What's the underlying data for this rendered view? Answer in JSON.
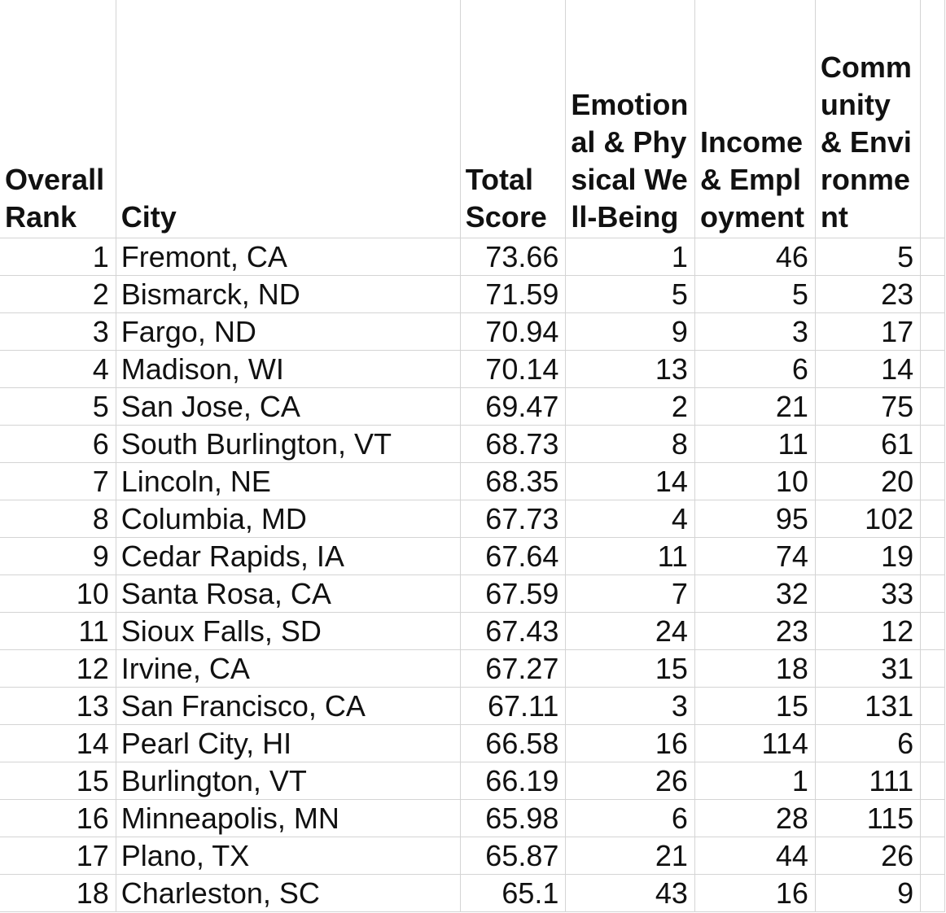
{
  "table": {
    "headers": {
      "rank": "Overall Rank",
      "city": "City",
      "total": "Total Score",
      "wellbeing": "Emotional & Physical Well-Being",
      "income": "Income & Employment",
      "community": "Community & Environment"
    },
    "rows": [
      {
        "rank": "1",
        "city": "Fremont, CA",
        "total": "73.66",
        "wellbeing": "1",
        "income": "46",
        "community": "5"
      },
      {
        "rank": "2",
        "city": "Bismarck, ND",
        "total": "71.59",
        "wellbeing": "5",
        "income": "5",
        "community": "23"
      },
      {
        "rank": "3",
        "city": "Fargo, ND",
        "total": "70.94",
        "wellbeing": "9",
        "income": "3",
        "community": "17"
      },
      {
        "rank": "4",
        "city": "Madison, WI",
        "total": "70.14",
        "wellbeing": "13",
        "income": "6",
        "community": "14"
      },
      {
        "rank": "5",
        "city": "San Jose, CA",
        "total": "69.47",
        "wellbeing": "2",
        "income": "21",
        "community": "75"
      },
      {
        "rank": "6",
        "city": "South Burlington, VT",
        "total": "68.73",
        "wellbeing": "8",
        "income": "11",
        "community": "61"
      },
      {
        "rank": "7",
        "city": "Lincoln, NE",
        "total": "68.35",
        "wellbeing": "14",
        "income": "10",
        "community": "20"
      },
      {
        "rank": "8",
        "city": "Columbia, MD",
        "total": "67.73",
        "wellbeing": "4",
        "income": "95",
        "community": "102"
      },
      {
        "rank": "9",
        "city": "Cedar Rapids, IA",
        "total": "67.64",
        "wellbeing": "11",
        "income": "74",
        "community": "19"
      },
      {
        "rank": "10",
        "city": "Santa Rosa, CA",
        "total": "67.59",
        "wellbeing": "7",
        "income": "32",
        "community": "33"
      },
      {
        "rank": "11",
        "city": "Sioux Falls, SD",
        "total": "67.43",
        "wellbeing": "24",
        "income": "23",
        "community": "12"
      },
      {
        "rank": "12",
        "city": "Irvine, CA",
        "total": "67.27",
        "wellbeing": "15",
        "income": "18",
        "community": "31"
      },
      {
        "rank": "13",
        "city": "San Francisco, CA",
        "total": "67.11",
        "wellbeing": "3",
        "income": "15",
        "community": "131"
      },
      {
        "rank": "14",
        "city": "Pearl City, HI",
        "total": "66.58",
        "wellbeing": "16",
        "income": "114",
        "community": "6"
      },
      {
        "rank": "15",
        "city": "Burlington, VT",
        "total": "66.19",
        "wellbeing": "26",
        "income": "1",
        "community": "111"
      },
      {
        "rank": "16",
        "city": "Minneapolis, MN",
        "total": "65.98",
        "wellbeing": "6",
        "income": "28",
        "community": "115"
      },
      {
        "rank": "17",
        "city": "Plano, TX",
        "total": "65.87",
        "wellbeing": "21",
        "income": "44",
        "community": "26"
      },
      {
        "rank": "18",
        "city": "Charleston, SC",
        "total": "65.1",
        "wellbeing": "43",
        "income": "16",
        "community": "9"
      }
    ]
  }
}
